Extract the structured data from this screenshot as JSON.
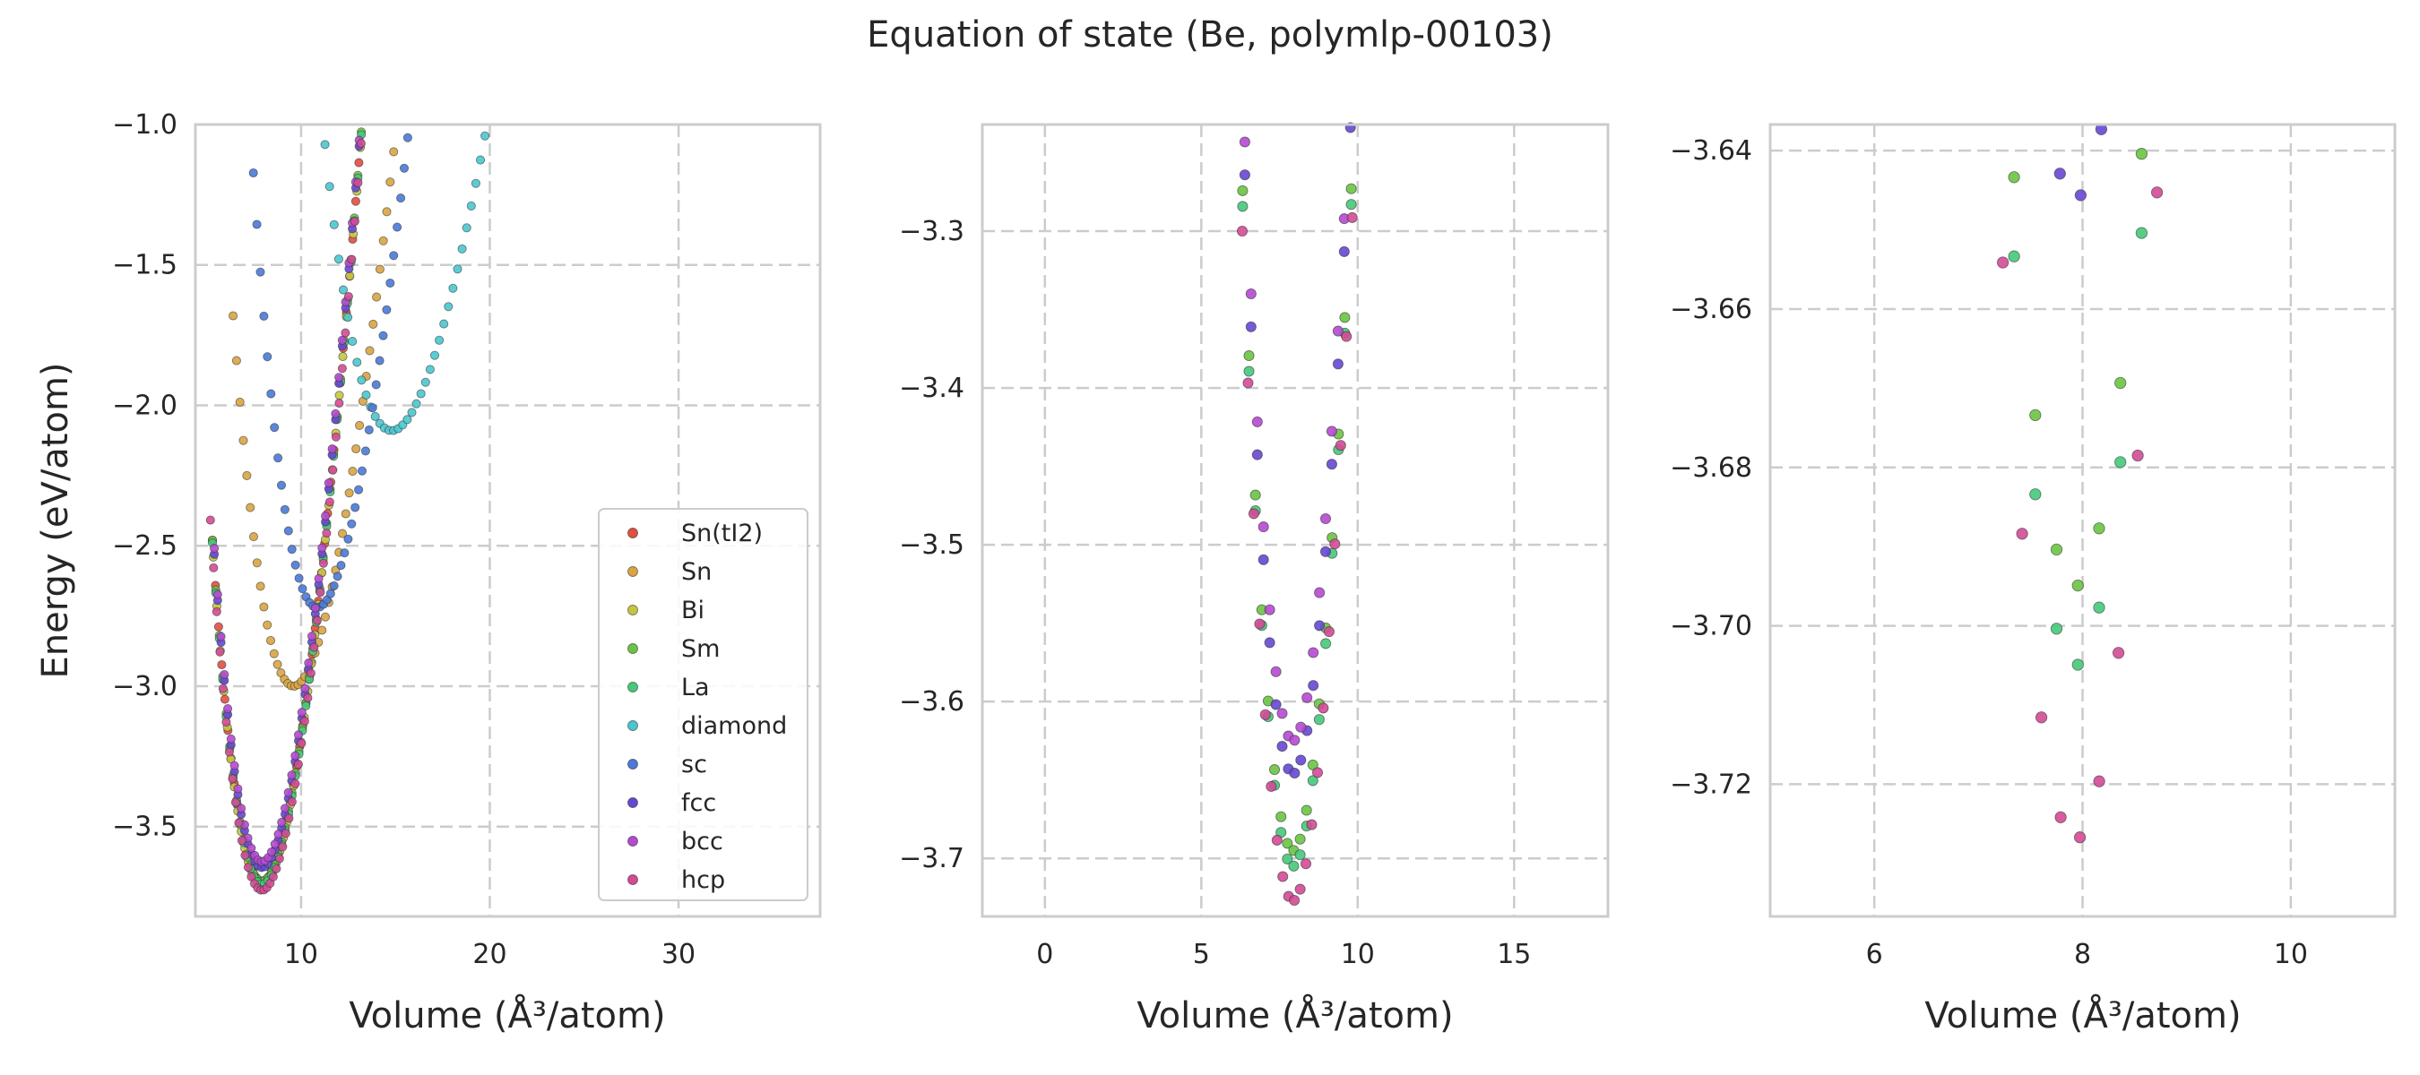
{
  "figure": {
    "suptitle": "Equation of state (Be, polymlp-00103)"
  },
  "chart_data": [
    {
      "type": "scatter",
      "panel": "full",
      "xlabel": "Volume (Å³/atom)",
      "ylabel": "Energy (eV/atom)",
      "xlim": [
        4.4,
        37.5
      ],
      "ylim": [
        -3.82,
        -1.0
      ],
      "xticks": [
        10,
        20,
        30
      ],
      "yticks": [
        -3.5,
        -3.0,
        -2.5,
        -2.0,
        -1.5,
        -1.0
      ],
      "xtick_labels": [
        "10",
        "20",
        "30"
      ],
      "ytick_labels": [
        "−3.5",
        "−3.0",
        "−2.5",
        "−2.0",
        "−1.5",
        "−1.0"
      ],
      "grid": true,
      "legend_position": "lower-right",
      "series": [
        {
          "name": "Sn(tI2)",
          "color": "#e04f3f",
          "curve": {
            "v0": 7.93,
            "e0": -3.695,
            "b": 0.142,
            "v_min": 5.3,
            "v_max": 20.0,
            "n": 90
          }
        },
        {
          "name": "Sn",
          "color": "#d9a441",
          "curve": {
            "v0": 9.6,
            "e0": -3.0,
            "b": 0.1,
            "v_min": 6.4,
            "v_max": 22.5,
            "n": 90
          }
        },
        {
          "name": "Bi",
          "color": "#c6c63e",
          "curve": {
            "v0": 7.93,
            "e0": -3.705,
            "b": 0.142,
            "v_min": 5.35,
            "v_max": 20.0,
            "n": 80
          }
        },
        {
          "name": "Sm",
          "color": "#6ac443",
          "curve": {
            "v0": 7.93,
            "e0": -3.695,
            "b": 0.142,
            "v_min": 5.3,
            "v_max": 19.8,
            "n": 80
          }
        },
        {
          "name": "La",
          "color": "#45c97a",
          "curve": {
            "v0": 7.93,
            "e0": -3.705,
            "b": 0.142,
            "v_min": 5.3,
            "v_max": 19.8,
            "n": 80
          }
        },
        {
          "name": "diamond",
          "color": "#49c6cf",
          "curve": {
            "v0": 14.8,
            "e0": -2.09,
            "b": 0.062,
            "v_min": 10.3,
            "v_max": 36.7,
            "n": 110
          }
        },
        {
          "name": "sc",
          "color": "#4a79d8",
          "curve": {
            "v0": 10.85,
            "e0": -2.72,
            "b": 0.104,
            "v_min": 7.1,
            "v_max": 25.5,
            "n": 100
          }
        },
        {
          "name": "fcc",
          "color": "#6647d3",
          "curve": {
            "v0": 7.93,
            "e0": -3.646,
            "b": 0.142,
            "v_min": 5.4,
            "v_max": 19.5,
            "n": 80
          }
        },
        {
          "name": "bcc",
          "color": "#b649d2",
          "curve": {
            "v0": 7.93,
            "e0": -3.625,
            "b": 0.142,
            "v_min": 5.4,
            "v_max": 19.5,
            "n": 80
          }
        },
        {
          "name": "hcp",
          "color": "#d34a96",
          "curve": {
            "v0": 7.93,
            "e0": -3.727,
            "b": 0.142,
            "v_min": 5.2,
            "v_max": 20.0,
            "n": 90
          }
        }
      ]
    },
    {
      "type": "scatter",
      "panel": "zoom-1",
      "xlabel": "Volume (Å³/atom)",
      "ylabel": "",
      "xlim": [
        -2.0,
        18.0
      ],
      "ylim": [
        -3.737,
        -3.232
      ],
      "xticks": [
        0,
        5,
        10,
        15
      ],
      "yticks": [
        -3.7,
        -3.6,
        -3.5,
        -3.4,
        -3.3
      ],
      "xtick_labels": [
        "0",
        "5",
        "10",
        "15"
      ],
      "ytick_labels": [
        "−3.7",
        "−3.6",
        "−3.5",
        "−3.4",
        "−3.3"
      ],
      "grid": true,
      "series_shown": [
        "Sm",
        "La",
        "fcc",
        "bcc",
        "hcp"
      ]
    },
    {
      "type": "scatter",
      "panel": "zoom-2",
      "xlabel": "Volume (Å³/atom)",
      "ylabel": "",
      "xlim": [
        5.0,
        11.0
      ],
      "ylim": [
        -3.7367,
        -3.6367
      ],
      "xticks": [
        6,
        8,
        10
      ],
      "yticks": [
        -3.72,
        -3.7,
        -3.68,
        -3.66,
        -3.64
      ],
      "xtick_labels": [
        "6",
        "8",
        "10"
      ],
      "ytick_labels": [
        "−3.72",
        "−3.70",
        "−3.68",
        "−3.66",
        "−3.64"
      ],
      "grid": true,
      "series_shown": [
        "Sm",
        "La",
        "fcc",
        "hcp"
      ]
    }
  ]
}
